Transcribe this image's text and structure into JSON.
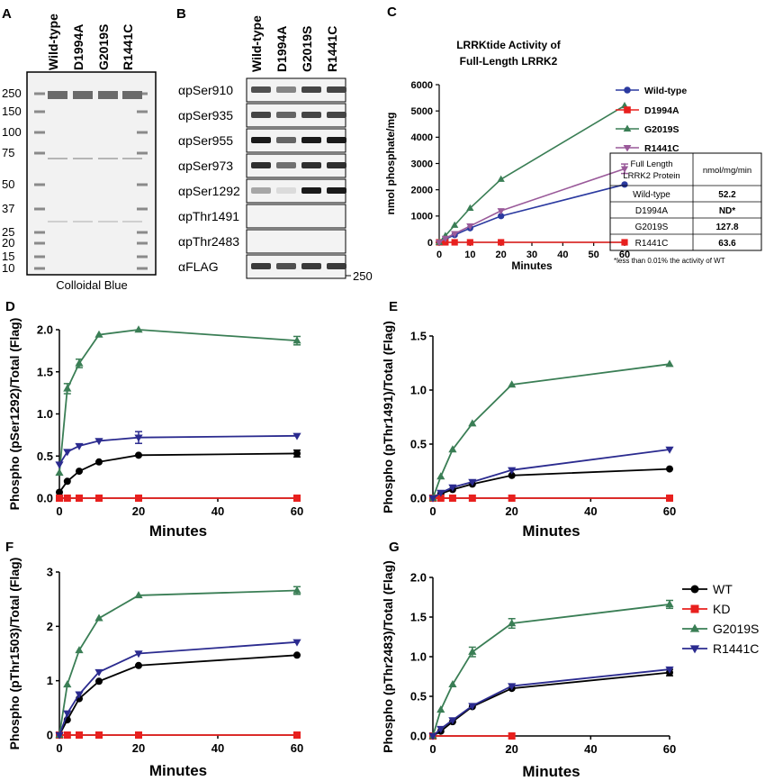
{
  "colors": {
    "wt": "#000000",
    "kd": "#e8201e",
    "g2019s": "#3a7e55",
    "r1441c": "#2b2b8f",
    "c_wt": "#2b3aa0",
    "c_r1441c": "#9a5a9a"
  },
  "panel_a": {
    "letter": "A",
    "lanes": [
      "Wild-type",
      "D1994A",
      "G2019S",
      "R1441C"
    ],
    "markers": [
      "250",
      "150",
      "100",
      "75",
      "50",
      "37",
      "25",
      "20",
      "15",
      "10"
    ],
    "caption": "Colloidal Blue"
  },
  "panel_b": {
    "letter": "B",
    "lanes": [
      "Wild-type",
      "D1994A",
      "G2019S",
      "R1441C"
    ],
    "rows": [
      "αpSer910",
      "αpSer935",
      "αpSer955",
      "αpSer973",
      "αpSer1292",
      "αpThr1491",
      "αpThr2483",
      "αFLAG"
    ],
    "intensity": [
      [
        0.7,
        0.45,
        0.75,
        0.75
      ],
      [
        0.75,
        0.6,
        0.75,
        0.75
      ],
      [
        0.95,
        0.6,
        0.95,
        0.95
      ],
      [
        0.85,
        0.55,
        0.85,
        0.85
      ],
      [
        0.3,
        0.05,
        0.95,
        0.95
      ],
      [
        0,
        0,
        0,
        0
      ],
      [
        0,
        0,
        0,
        0
      ],
      [
        0.8,
        0.7,
        0.8,
        0.8
      ]
    ],
    "size_marker": "250"
  },
  "panel_c": {
    "letter": "C",
    "table": {
      "header": [
        "Full Length LRRK2 Protein",
        "nmol/mg/min"
      ],
      "rows": [
        [
          "Wild-type",
          "52.2"
        ],
        [
          "D1994A",
          "ND*"
        ],
        [
          "G2019S",
          "127.8"
        ],
        [
          "R1441C",
          "63.6"
        ]
      ],
      "footnote": "*less than 0.01% the activity of WT"
    }
  },
  "chart_data": [
    {
      "type": "line",
      "panel": "C",
      "title": "LRRKtide  Activity of Full-Length LRRK2",
      "xlabel": "Minutes",
      "ylabel": "nmol phosphate/mg",
      "xlim": [
        0,
        60
      ],
      "ylim": [
        0,
        6000
      ],
      "xticks": [
        0,
        10,
        20,
        30,
        40,
        50,
        60
      ],
      "yticks": [
        0,
        1000,
        2000,
        3000,
        4000,
        5000,
        6000
      ],
      "legend": "right",
      "series": [
        {
          "name": "Wild-type",
          "color": "c_wt",
          "marker": "circle",
          "x": [
            0,
            2,
            5,
            10,
            20,
            60
          ],
          "y": [
            0,
            120,
            280,
            540,
            1000,
            2200
          ]
        },
        {
          "name": "D1994A",
          "color": "kd",
          "marker": "square",
          "x": [
            0,
            2,
            5,
            10,
            20,
            60
          ],
          "y": [
            0,
            0,
            0,
            0,
            0,
            0
          ]
        },
        {
          "name": "G2019S",
          "color": "g2019s",
          "marker": "triangle",
          "x": [
            0,
            2,
            5,
            10,
            20,
            60
          ],
          "y": [
            0,
            250,
            650,
            1300,
            2400,
            5200
          ]
        },
        {
          "name": "R1441C",
          "color": "c_r1441c",
          "marker": "tri-down",
          "x": [
            0,
            2,
            5,
            10,
            20,
            60
          ],
          "y": [
            0,
            150,
            330,
            620,
            1200,
            2800
          ],
          "err": [
            0,
            0,
            0,
            0,
            0,
            180
          ]
        }
      ]
    },
    {
      "type": "line",
      "panel": "D",
      "xlabel": "Minutes",
      "ylabel": "Phospho (pSer1292)/Total (Flag)",
      "xlim": [
        0,
        60
      ],
      "ylim": [
        0,
        2.0
      ],
      "xticks": [
        0,
        20,
        40,
        60
      ],
      "yticks": [
        0,
        0.5,
        1.0,
        1.5,
        2.0
      ],
      "ytick_labels": [
        "0.0",
        "0.5",
        "1.0",
        "1.5",
        "2.0"
      ],
      "series": [
        {
          "name": "WT",
          "color": "wt",
          "marker": "circle",
          "x": [
            0,
            2,
            5,
            10,
            20,
            60
          ],
          "y": [
            0.07,
            0.2,
            0.32,
            0.43,
            0.51,
            0.53
          ],
          "err": [
            0,
            0,
            0,
            0,
            0,
            0.04
          ]
        },
        {
          "name": "KD",
          "color": "kd",
          "marker": "square",
          "x": [
            0,
            2,
            5,
            10,
            20,
            60
          ],
          "y": [
            0,
            0,
            0,
            0,
            0,
            0
          ]
        },
        {
          "name": "G2019S",
          "color": "g2019s",
          "marker": "triangle",
          "x": [
            0,
            2,
            5,
            10,
            20,
            60
          ],
          "y": [
            0.3,
            1.3,
            1.6,
            1.94,
            2.0,
            1.87
          ],
          "err": [
            0,
            0.06,
            0.05,
            0,
            0,
            0.05
          ]
        },
        {
          "name": "R1441C",
          "color": "r1441c",
          "marker": "tri-down",
          "x": [
            0,
            2,
            5,
            10,
            20,
            60
          ],
          "y": [
            0.4,
            0.55,
            0.62,
            0.68,
            0.72,
            0.74
          ],
          "err": [
            0,
            0,
            0,
            0,
            0.07,
            0
          ]
        }
      ]
    },
    {
      "type": "line",
      "panel": "E",
      "xlabel": "Minutes",
      "ylabel": "Phospho (pThr1491)/Total (Flag)",
      "xlim": [
        0,
        60
      ],
      "ylim": [
        0,
        1.5
      ],
      "xticks": [
        0,
        20,
        40,
        60
      ],
      "yticks": [
        0,
        0.5,
        1.0,
        1.5
      ],
      "ytick_labels": [
        "0.0",
        "0.5",
        "1.0",
        "1.5"
      ],
      "series": [
        {
          "name": "WT",
          "color": "wt",
          "marker": "circle",
          "x": [
            0,
            2,
            5,
            10,
            20,
            60
          ],
          "y": [
            0,
            0.04,
            0.08,
            0.13,
            0.21,
            0.27
          ]
        },
        {
          "name": "KD",
          "color": "kd",
          "marker": "square",
          "x": [
            0,
            2,
            5,
            10,
            20,
            60
          ],
          "y": [
            0,
            0,
            0,
            0,
            0,
            0
          ]
        },
        {
          "name": "G2019S",
          "color": "g2019s",
          "marker": "triangle",
          "x": [
            0,
            2,
            5,
            10,
            20,
            60
          ],
          "y": [
            0,
            0.2,
            0.45,
            0.69,
            1.05,
            1.24
          ]
        },
        {
          "name": "R1441C",
          "color": "r1441c",
          "marker": "tri-down",
          "x": [
            0,
            2,
            5,
            10,
            20,
            60
          ],
          "y": [
            0,
            0.05,
            0.1,
            0.15,
            0.26,
            0.45
          ]
        }
      ]
    },
    {
      "type": "line",
      "panel": "F",
      "xlabel": "Minutes",
      "ylabel": "Phospho (pThr1503)/Total (Flag)",
      "xlim": [
        0,
        60
      ],
      "ylim": [
        0,
        3
      ],
      "xticks": [
        0,
        20,
        40,
        60
      ],
      "yticks": [
        0,
        1,
        2,
        3
      ],
      "ytick_labels": [
        "0",
        "1",
        "2",
        "3"
      ],
      "series": [
        {
          "name": "WT",
          "color": "wt",
          "marker": "circle",
          "x": [
            0,
            2,
            5,
            10,
            20,
            60
          ],
          "y": [
            0,
            0.28,
            0.67,
            0.99,
            1.28,
            1.47
          ]
        },
        {
          "name": "KD",
          "color": "kd",
          "marker": "square",
          "x": [
            0,
            2,
            5,
            10,
            20,
            60
          ],
          "y": [
            0,
            0,
            0,
            0,
            0,
            0
          ]
        },
        {
          "name": "G2019S",
          "color": "g2019s",
          "marker": "triangle",
          "x": [
            0,
            2,
            5,
            10,
            20,
            60
          ],
          "y": [
            0,
            0.93,
            1.56,
            2.15,
            2.57,
            2.66
          ],
          "err": [
            0,
            0,
            0,
            0,
            0,
            0.07
          ]
        },
        {
          "name": "R1441C",
          "color": "r1441c",
          "marker": "tri-down",
          "x": [
            0,
            2,
            5,
            10,
            20,
            60
          ],
          "y": [
            0,
            0.4,
            0.75,
            1.16,
            1.5,
            1.71
          ]
        }
      ]
    },
    {
      "type": "line",
      "panel": "G",
      "xlabel": "Minutes",
      "ylabel": "Phospho (pThr2483)/Total (Flag)",
      "xlim": [
        0,
        60
      ],
      "ylim": [
        0,
        2.0
      ],
      "xticks": [
        0,
        20,
        40,
        60
      ],
      "yticks": [
        0,
        0.5,
        1.0,
        1.5,
        2.0
      ],
      "ytick_labels": [
        "0.0",
        "0.5",
        "1.0",
        "1.5",
        "2.0"
      ],
      "legend": "right",
      "series": [
        {
          "name": "WT",
          "color": "wt",
          "marker": "circle",
          "x": [
            0,
            2,
            5,
            10,
            20,
            60
          ],
          "y": [
            0,
            0.06,
            0.18,
            0.37,
            0.6,
            0.8
          ],
          "err": [
            0,
            0,
            0,
            0,
            0,
            0.04
          ]
        },
        {
          "name": "KD",
          "color": "kd",
          "marker": "square",
          "x": [
            0,
            20
          ],
          "y": [
            0,
            0
          ]
        },
        {
          "name": "G2019S",
          "color": "g2019s",
          "marker": "triangle",
          "x": [
            0,
            2,
            5,
            10,
            20,
            60
          ],
          "y": [
            0,
            0.33,
            0.65,
            1.06,
            1.42,
            1.66
          ],
          "err": [
            0,
            0,
            0,
            0.06,
            0.06,
            0.05
          ]
        },
        {
          "name": "R1441C",
          "color": "r1441c",
          "marker": "tri-down",
          "x": [
            0,
            2,
            5,
            10,
            20,
            60
          ],
          "y": [
            0,
            0.09,
            0.2,
            0.38,
            0.63,
            0.84
          ]
        }
      ]
    }
  ]
}
